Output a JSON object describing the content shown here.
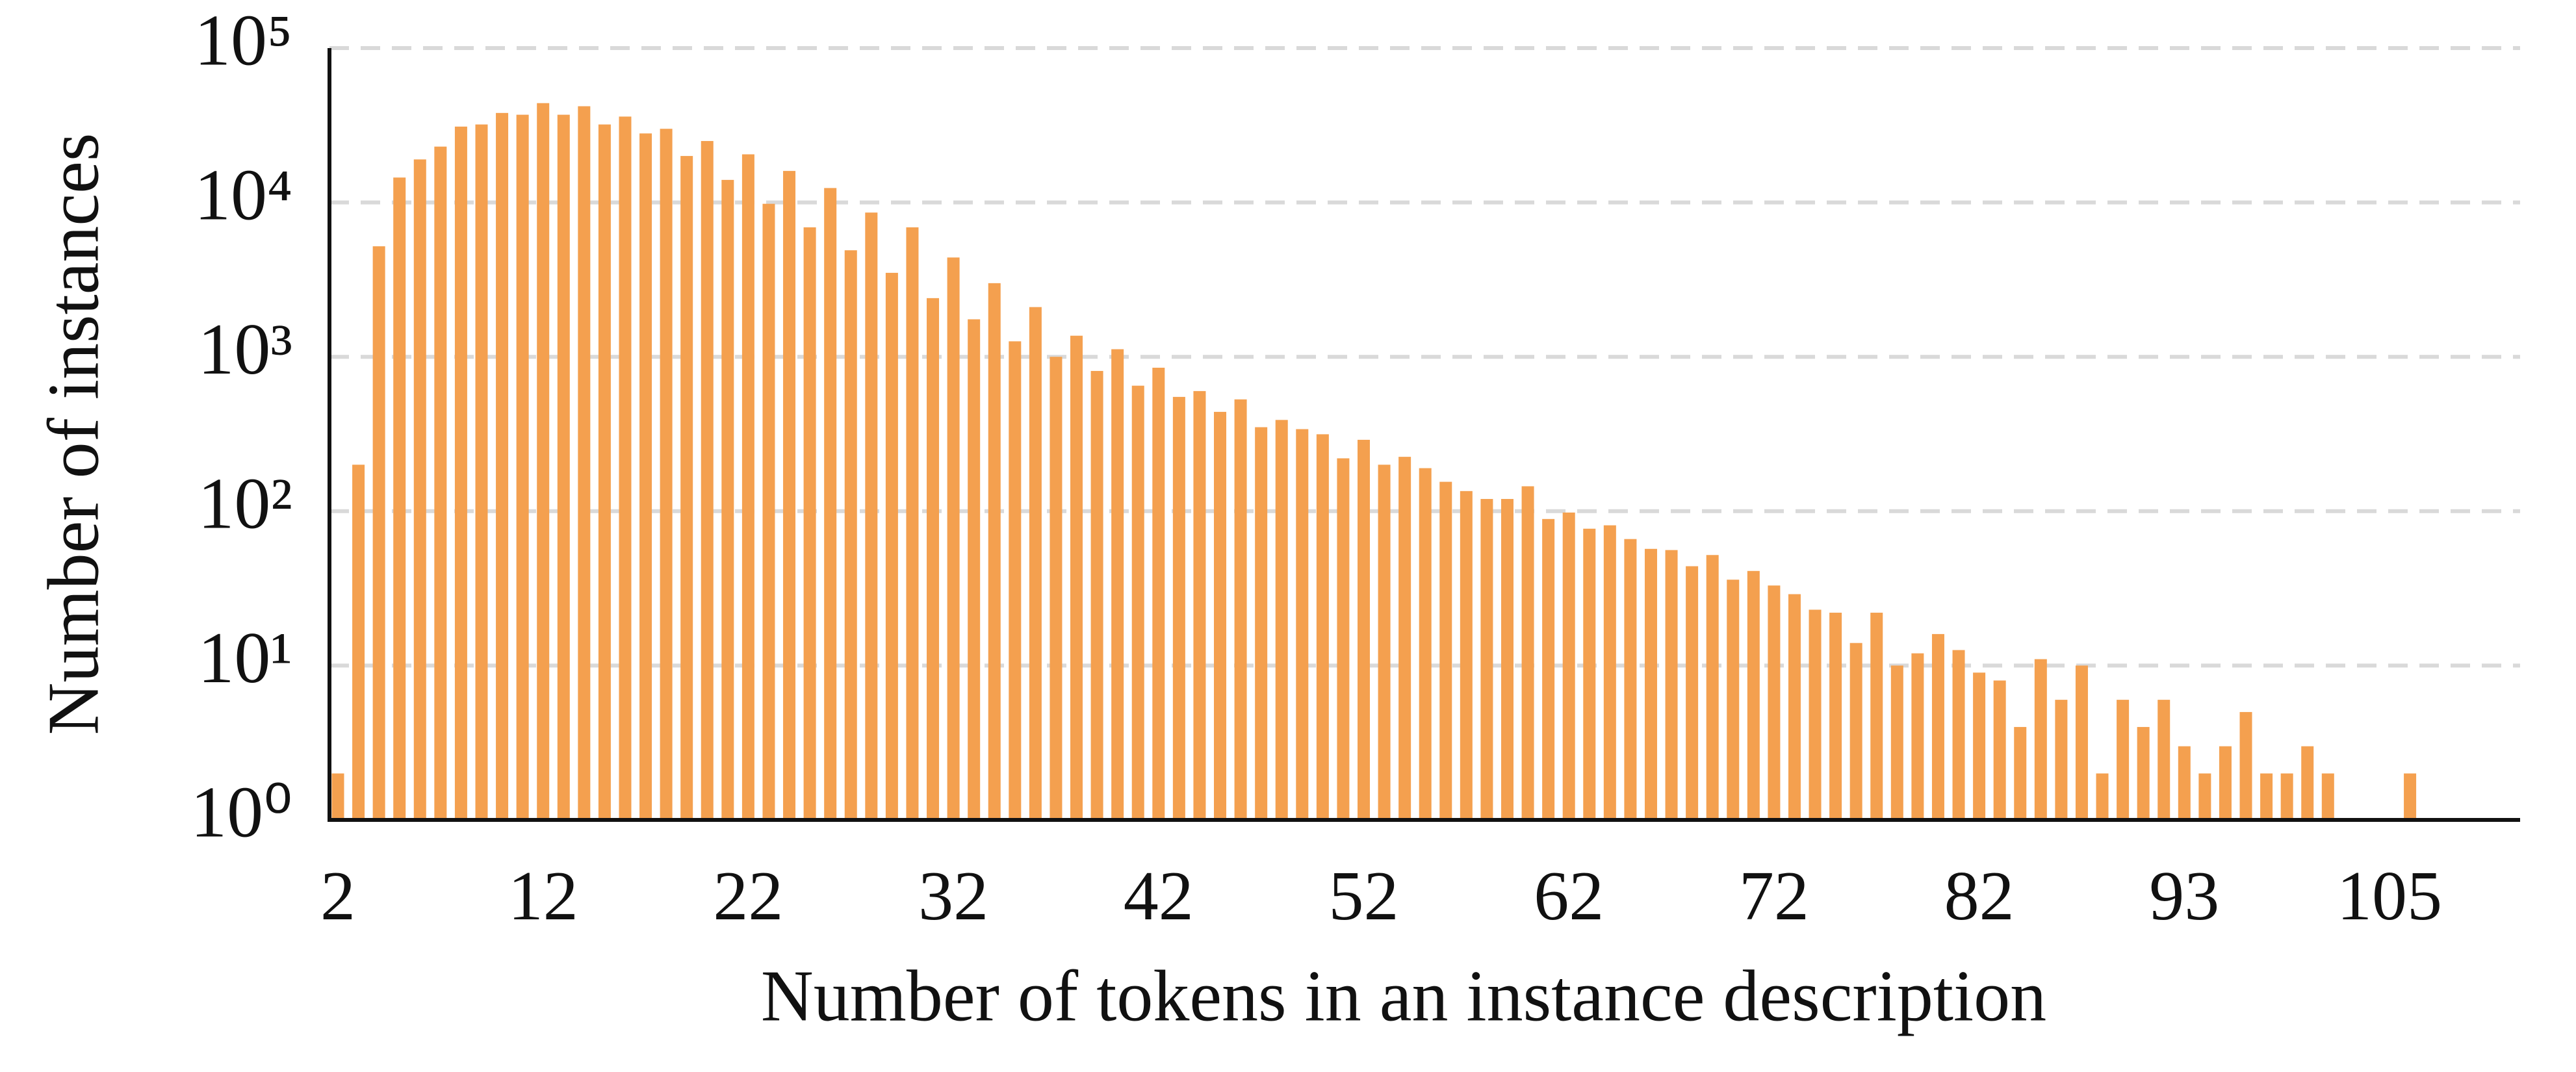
{
  "chart_data": {
    "type": "bar",
    "x_label": "Number of tokens in an instance description",
    "y_label": "Number of instances",
    "categories": [
      "2",
      null,
      null,
      null,
      null,
      null,
      null,
      null,
      null,
      null,
      "12",
      null,
      null,
      null,
      null,
      null,
      null,
      null,
      null,
      null,
      "22",
      null,
      null,
      null,
      null,
      null,
      null,
      null,
      null,
      null,
      "32",
      null,
      null,
      null,
      null,
      null,
      null,
      null,
      null,
      null,
      "42",
      null,
      null,
      null,
      null,
      null,
      null,
      null,
      null,
      null,
      "52",
      null,
      null,
      null,
      null,
      null,
      null,
      null,
      null,
      null,
      "62",
      null,
      null,
      null,
      null,
      null,
      null,
      null,
      null,
      null,
      "72",
      null,
      null,
      null,
      null,
      null,
      null,
      null,
      null,
      null,
      "82",
      null,
      null,
      null,
      null,
      null,
      null,
      null,
      null,
      null,
      "93",
      null,
      null,
      null,
      null,
      null,
      null,
      null,
      null,
      null,
      "105",
      null
    ],
    "values": [
      2,
      200,
      5200,
      14500,
      19000,
      23000,
      31000,
      32000,
      38000,
      37000,
      44000,
      37000,
      42000,
      32000,
      36000,
      28000,
      30000,
      20000,
      25000,
      14000,
      20500,
      9800,
      16000,
      6900,
      12400,
      4900,
      8600,
      3500,
      6900,
      2400,
      4400,
      1750,
      3000,
      1260,
      2100,
      1000,
      1370,
      810,
      1120,
      650,
      850,
      550,
      600,
      440,
      530,
      350,
      390,
      340,
      315,
      220,
      290,
      200,
      225,
      190,
      155,
      135,
      120,
      120,
      145,
      89,
      98,
      77,
      81,
      66,
      57,
      56,
      44,
      52,
      36,
      41,
      33,
      29,
      23,
      22,
      14,
      22,
      10,
      12,
      16,
      12.6,
      9,
      8,
      4,
      11,
      6,
      10,
      2,
      6,
      4,
      6,
      3,
      2,
      3,
      5,
      2,
      2,
      3,
      2,
      null,
      null,
      null,
      2
    ],
    "color": "#f4a04f",
    "log_scale": true,
    "ylim": [
      1,
      100000
    ],
    "yticks": [
      {
        "value": 1,
        "label": "10⁰"
      },
      {
        "value": 10,
        "label": "10¹"
      },
      {
        "value": 100,
        "label": "10²"
      },
      {
        "value": 1000,
        "label": "10³"
      },
      {
        "value": 10000,
        "label": "10⁴"
      },
      {
        "value": 100000,
        "label": "10⁵"
      }
    ],
    "grid": true
  }
}
